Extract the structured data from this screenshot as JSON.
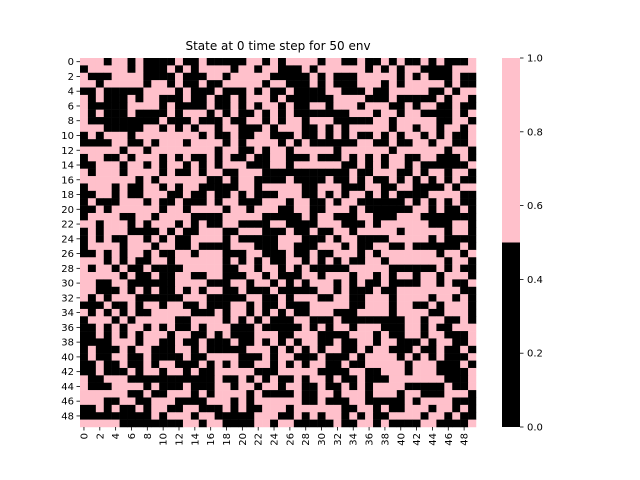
{
  "chart_data": {
    "type": "heatmap",
    "title": "State at 0 time step for 50 env",
    "xlabel": "",
    "ylabel": "",
    "rows": 50,
    "cols": 50,
    "x_tick_labels": [
      "0",
      "2",
      "4",
      "6",
      "8",
      "10",
      "12",
      "14",
      "16",
      "18",
      "20",
      "22",
      "24",
      "26",
      "28",
      "30",
      "32",
      "34",
      "36",
      "38",
      "40",
      "42",
      "44",
      "46",
      "48"
    ],
    "y_tick_labels": [
      "0",
      "2",
      "4",
      "6",
      "8",
      "10",
      "12",
      "14",
      "16",
      "18",
      "20",
      "22",
      "24",
      "26",
      "28",
      "30",
      "32",
      "34",
      "36",
      "38",
      "40",
      "42",
      "44",
      "46",
      "48"
    ],
    "colorbar": {
      "range": [
        0.0,
        1.0
      ],
      "tick_labels": [
        "0.0",
        "0.2",
        "0.4",
        "0.6",
        "0.8",
        "1.0"
      ],
      "tick_values": [
        0.0,
        0.2,
        0.4,
        0.6,
        0.8,
        1.0
      ],
      "segments": [
        {
          "from": 0.0,
          "to": 0.5,
          "color": "#000000"
        },
        {
          "from": 0.5,
          "to": 1.0,
          "color": "#ffc0cb"
        }
      ]
    },
    "colors": {
      "zero": "#000000",
      "one": "#ffc0cb"
    },
    "random_binary_pattern": true
  }
}
